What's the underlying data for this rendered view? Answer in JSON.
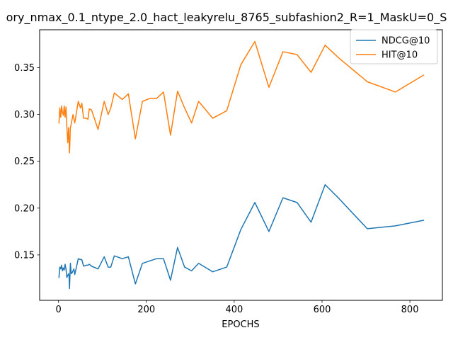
{
  "chart_data": {
    "type": "line",
    "title": "ory_nmax_0.1_ntype_2.0_hact_leakyrelu_8765_subfashion2_R=1_MaskU=0_S",
    "xlabel": "EPOCHS",
    "ylabel": "",
    "xlim": [
      -43,
      874
    ],
    "ylim": [
      0.1015,
      0.3905
    ],
    "xticks": [
      0,
      200,
      400,
      600,
      800
    ],
    "yticks": [
      0.15,
      0.2,
      0.25,
      0.3,
      0.35
    ],
    "ytick_labels": [
      "0.15",
      "0.20",
      "0.25",
      "0.30",
      "0.35"
    ],
    "legend_position": "top-right",
    "grid": false,
    "series": [
      {
        "name": "NDCG@10",
        "color": "#1f77b4",
        "points": [
          [
            1,
            0.126
          ],
          [
            3,
            0.137
          ],
          [
            5,
            0.135
          ],
          [
            7,
            0.139
          ],
          [
            9,
            0.133
          ],
          [
            11,
            0.136
          ],
          [
            13,
            0.134
          ],
          [
            15,
            0.14
          ],
          [
            17,
            0.135
          ],
          [
            19,
            0.126
          ],
          [
            21,
            0.128
          ],
          [
            23,
            0.13
          ],
          [
            24,
            0.127
          ],
          [
            25,
            0.114
          ],
          [
            27,
            0.141
          ],
          [
            29,
            0.13
          ],
          [
            31,
            0.131
          ],
          [
            33,
            0.133
          ],
          [
            35,
            0.135
          ],
          [
            37,
            0.129
          ],
          [
            45,
            0.146
          ],
          [
            50,
            0.145
          ],
          [
            53,
            0.145
          ],
          [
            57,
            0.138
          ],
          [
            63,
            0.139
          ],
          [
            67,
            0.139
          ],
          [
            70,
            0.14
          ],
          [
            75,
            0.138
          ],
          [
            90,
            0.135
          ],
          [
            104,
            0.148
          ],
          [
            113,
            0.137
          ],
          [
            119,
            0.137
          ],
          [
            127,
            0.149
          ],
          [
            145,
            0.146
          ],
          [
            159,
            0.148
          ],
          [
            175,
            0.119
          ],
          [
            191,
            0.141
          ],
          [
            223,
            0.146
          ],
          [
            239,
            0.146
          ],
          [
            255,
            0.123
          ],
          [
            271,
            0.158
          ],
          [
            287,
            0.137
          ],
          [
            303,
            0.133
          ],
          [
            319,
            0.141
          ],
          [
            351,
            0.132
          ],
          [
            383,
            0.137
          ],
          [
            415,
            0.177
          ],
          [
            447,
            0.206
          ],
          [
            479,
            0.175
          ],
          [
            511,
            0.211
          ],
          [
            543,
            0.206
          ],
          [
            575,
            0.185
          ],
          [
            607,
            0.225
          ],
          [
            639,
            0.21
          ],
          [
            703,
            0.178
          ],
          [
            767,
            0.181
          ],
          [
            831,
            0.187
          ]
        ]
      },
      {
        "name": "HIT@10",
        "color": "#ff7f0e",
        "points": [
          [
            1,
            0.291
          ],
          [
            3,
            0.307
          ],
          [
            5,
            0.297
          ],
          [
            7,
            0.309
          ],
          [
            9,
            0.302
          ],
          [
            11,
            0.299
          ],
          [
            13,
            0.309
          ],
          [
            15,
            0.297
          ],
          [
            17,
            0.308
          ],
          [
            19,
            0.287
          ],
          [
            21,
            0.27
          ],
          [
            23,
            0.286
          ],
          [
            25,
            0.259
          ],
          [
            27,
            0.286
          ],
          [
            29,
            0.29
          ],
          [
            31,
            0.295
          ],
          [
            33,
            0.3
          ],
          [
            37,
            0.291
          ],
          [
            45,
            0.314
          ],
          [
            50,
            0.307
          ],
          [
            53,
            0.312
          ],
          [
            57,
            0.296
          ],
          [
            63,
            0.296
          ],
          [
            67,
            0.295
          ],
          [
            70,
            0.306
          ],
          [
            75,
            0.305
          ],
          [
            90,
            0.284
          ],
          [
            104,
            0.314
          ],
          [
            113,
            0.3
          ],
          [
            119,
            0.307
          ],
          [
            127,
            0.323
          ],
          [
            145,
            0.316
          ],
          [
            159,
            0.322
          ],
          [
            175,
            0.274
          ],
          [
            191,
            0.314
          ],
          [
            207,
            0.317
          ],
          [
            223,
            0.317
          ],
          [
            239,
            0.324
          ],
          [
            255,
            0.278
          ],
          [
            271,
            0.325
          ],
          [
            287,
            0.307
          ],
          [
            303,
            0.291
          ],
          [
            319,
            0.314
          ],
          [
            351,
            0.296
          ],
          [
            383,
            0.304
          ],
          [
            415,
            0.353
          ],
          [
            447,
            0.378
          ],
          [
            479,
            0.329
          ],
          [
            511,
            0.367
          ],
          [
            543,
            0.364
          ],
          [
            575,
            0.345
          ],
          [
            607,
            0.374
          ],
          [
            639,
            0.36
          ],
          [
            703,
            0.335
          ],
          [
            767,
            0.324
          ],
          [
            831,
            0.342
          ]
        ]
      }
    ]
  }
}
